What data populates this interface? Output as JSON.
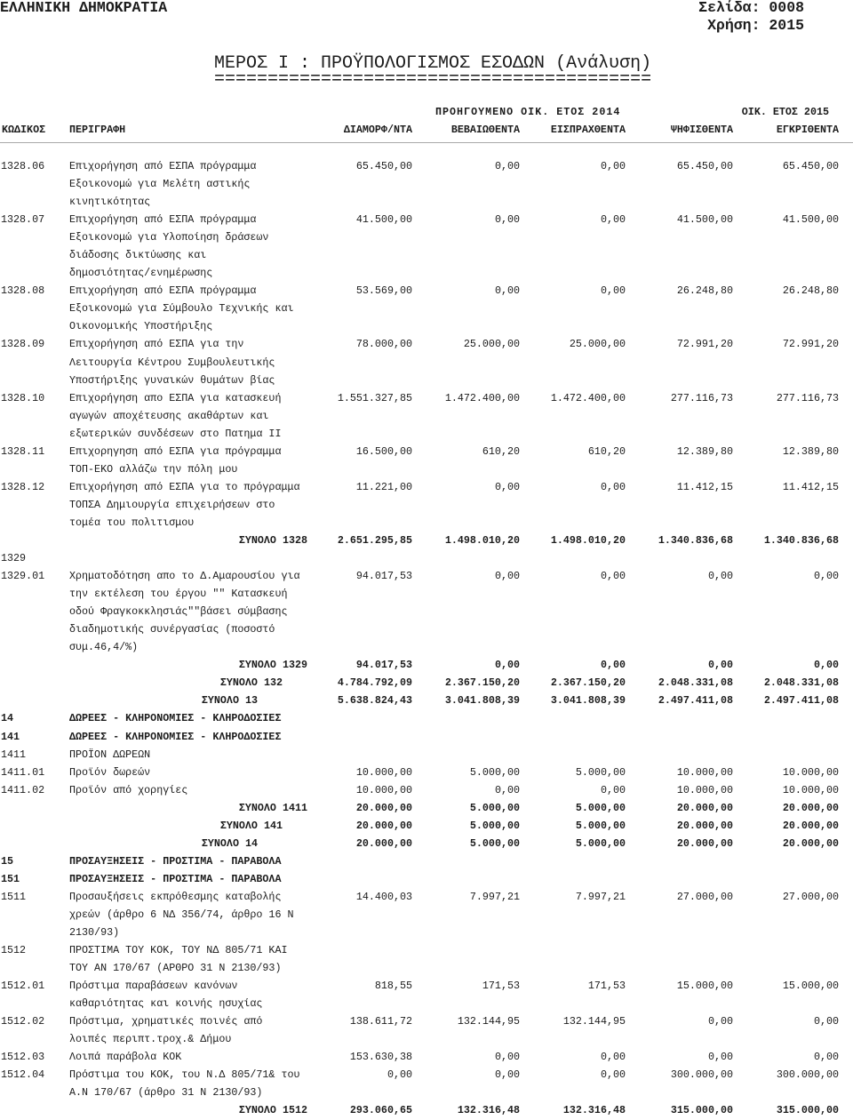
{
  "header": {
    "state": "ΕΛΛΗΝΙΚΗ ΔΗΜΟΚΡΑΤΙΑ",
    "page": "Σελίδα: 0008",
    "year": "Χρήση: 2015",
    "title": "ΜΕΡΟΣ Ι : ΠΡΟΫΠΟΛΟΓΙΣΜΟΣ ΕΣΟΔΩΝ (Ανάλυση)",
    "underline": "=========================================",
    "prev_year": "ΠΡΟΗΓΟΥΜΕΝΟ ΟΙΚ. ΕΤΟΣ 2014",
    "cur_year": "ΟΙΚ. ΕΤΟΣ 2015"
  },
  "columns": {
    "code": "ΚΩΔΙΚΟΣ",
    "desc": "ΠΕΡΙΓΡΑΦΗ",
    "formed": "ΔΙΑΜΟΡΦ/ΝΤΑ",
    "certified": "ΒΕΒΑΙΩΘΕΝΤΑ",
    "collected": "ΕΙΣΠΡΑΧΘΕΝΤΑ",
    "voted": "ΨΗΦΙΣΘΕΝΤΑ",
    "approved": "ΕΓΚΡΙΘΕΝΤΑ"
  },
  "rows": [
    {
      "code": "1328.06",
      "desc": [
        "Επιχορήγηση από ΕΣΠΑ πρόγραμμα",
        "Εξοικονομώ για Μελέτη αστικής",
        "κινητικότητας"
      ],
      "values": [
        "65.450,00",
        "0,00",
        "0,00",
        "65.450,00",
        "65.450,00"
      ]
    },
    {
      "code": "1328.07",
      "desc": [
        "Επιχορήγηση από ΕΣΠΑ πρόγραμμα",
        "Εξοικονομώ για Υλοποίηση δράσεων",
        "διάδοσης δικτύωσης και",
        "δημοσιότητας/ενημέρωσης"
      ],
      "values": [
        "41.500,00",
        "0,00",
        "0,00",
        "41.500,00",
        "41.500,00"
      ]
    },
    {
      "code": "1328.08",
      "desc": [
        "Επιχορήγηση από ΕΣΠΑ πρόγραμμα",
        "Εξοικονομώ για Σύμβουλο Τεχνικής και",
        "Οικονομικής Υποστήριξης"
      ],
      "values": [
        "53.569,00",
        "0,00",
        "0,00",
        "26.248,80",
        "26.248,80"
      ]
    },
    {
      "code": "1328.09",
      "desc": [
        "Επιχορήγηση από ΕΣΠΑ για την",
        "Λειτουργία Κέντρου Συμβουλευτικής",
        "Υποστήριξης γυναικών θυμάτων βίας"
      ],
      "values": [
        "78.000,00",
        "25.000,00",
        "25.000,00",
        "72.991,20",
        "72.991,20"
      ]
    },
    {
      "code": "1328.10",
      "desc": [
        "Επιχορήγηση απο ΕΣΠΑ για κατασκευή",
        "αγωγών αποχέτευσης ακαθάρτων και",
        "εξωτερικών συνδέσεων στο Πατημα ΙΙ"
      ],
      "values": [
        "1.551.327,85",
        "1.472.400,00",
        "1.472.400,00",
        "277.116,73",
        "277.116,73"
      ]
    },
    {
      "code": "1328.11",
      "desc": [
        "Επιχορηγηση από ΕΣΠΑ για πρόγραμμα",
        "ΤΟΠ-ΕΚΟ αλλάζω την πόλη μου"
      ],
      "values": [
        "16.500,00",
        "610,20",
        "610,20",
        "12.389,80",
        "12.389,80"
      ]
    },
    {
      "code": "1328.12",
      "desc": [
        "Επιχορήγηση από ΕΣΠΑ για το πρόγραμμα",
        "ΤΟΠΣΑ Δημιουργία επιχειρήσεων στο",
        "τομέα του πολιτισμου"
      ],
      "values": [
        "11.221,00",
        "0,00",
        "0,00",
        "11.412,15",
        "11.412,15"
      ]
    },
    {
      "total": "ΣΥΝΟΛΟ 1328",
      "values": [
        "2.651.295,85",
        "1.498.010,20",
        "1.498.010,20",
        "1.340.836,68",
        "1.340.836,68"
      ]
    },
    {
      "code": "1329",
      "desc": []
    },
    {
      "code": "1329.01",
      "desc": [
        "Χρηματοδότηση απο το Δ.Αμαρουσίου για",
        "την εκτέλεση του έργου \"\" Κατασκευή",
        "οδού Φραγκοκκλησιάς\"\"βάσει σύμβασης",
        "διαδημοτικής συνέργασίας (ποσοστό",
        "συμ.46,4/%)"
      ],
      "values": [
        "94.017,53",
        "0,00",
        "0,00",
        "0,00",
        "0,00"
      ]
    },
    {
      "total": "ΣΥΝΟΛΟ 1329",
      "values": [
        "94.017,53",
        "0,00",
        "0,00",
        "0,00",
        "0,00"
      ]
    },
    {
      "total": "ΣΥΝΟΛΟ 132",
      "values": [
        "4.784.792,09",
        "2.367.150,20",
        "2.367.150,20",
        "2.048.331,08",
        "2.048.331,08"
      ]
    },
    {
      "total": "ΣΥΝΟΛΟ 13",
      "values": [
        "5.638.824,43",
        "3.041.808,39",
        "3.041.808,39",
        "2.497.411,08",
        "2.497.411,08"
      ]
    },
    {
      "code": "14",
      "heading": true,
      "desc": [
        "ΔΩΡΕΕΣ - ΚΛΗΡΟΝΟΜΙΕΣ - ΚΛΗΡΟΔΟΣΙΕΣ"
      ]
    },
    {
      "code": "141",
      "heading": true,
      "desc": [
        "ΔΩΡΕΕΣ - ΚΛΗΡΟΝΟΜΙΕΣ - ΚΛΗΡΟΔΟΣΙΕΣ"
      ]
    },
    {
      "code": "1411",
      "desc": [
        "ΠΡΟΪΟΝ ΔΩΡΕΩΝ"
      ]
    },
    {
      "code": "1411.01",
      "desc": [
        "Προϊόν δωρεών"
      ],
      "values": [
        "10.000,00",
        "5.000,00",
        "5.000,00",
        "10.000,00",
        "10.000,00"
      ]
    },
    {
      "code": "1411.02",
      "desc": [
        "Προϊόν από χορηγίες"
      ],
      "values": [
        "10.000,00",
        "0,00",
        "0,00",
        "10.000,00",
        "10.000,00"
      ]
    },
    {
      "total": "ΣΥΝΟΛΟ 1411",
      "values": [
        "20.000,00",
        "5.000,00",
        "5.000,00",
        "20.000,00",
        "20.000,00"
      ]
    },
    {
      "total": "ΣΥΝΟΛΟ 141",
      "values": [
        "20.000,00",
        "5.000,00",
        "5.000,00",
        "20.000,00",
        "20.000,00"
      ]
    },
    {
      "total": "ΣΥΝΟΛΟ 14",
      "values": [
        "20.000,00",
        "5.000,00",
        "5.000,00",
        "20.000,00",
        "20.000,00"
      ]
    },
    {
      "code": "15",
      "heading": true,
      "desc": [
        "ΠΡΟΣΑΥΞΗΣΕΙΣ - ΠΡΟΣΤΙΜΑ - ΠΑΡΑΒΟΛΑ"
      ]
    },
    {
      "code": "151",
      "heading": true,
      "desc": [
        "ΠΡΟΣΑΥΞΗΣΕΙΣ - ΠΡΟΣΤΙΜΑ - ΠΑΡΑΒΟΛΑ"
      ]
    },
    {
      "code": "1511",
      "desc": [
        "Προσαυξήσεις εκπρόθεσμης καταβολής",
        "χρεών (άρθρο 6 ΝΔ 356/74, άρθρο 16 Ν",
        "2130/93)"
      ],
      "values": [
        "14.400,03",
        "7.997,21",
        "7.997,21",
        "27.000,00",
        "27.000,00"
      ]
    },
    {
      "code": "1512",
      "desc": [
        "ΠΡΟΣΤΙΜΑ ΤΟΥ ΚΟΚ, ΤΟΥ ΝΔ 805/71 ΚΑΙ",
        "ΤΟΥ ΑΝ 170/67 (ΑΡΘΡΟ 31 Ν 2130/93)"
      ]
    },
    {
      "code": "1512.01",
      "desc": [
        "Πρόστιμα παραβάσεων κανόνων",
        "καθαριότητας και κοινής ησυχίας"
      ],
      "values": [
        "818,55",
        "171,53",
        "171,53",
        "15.000,00",
        "15.000,00"
      ]
    },
    {
      "code": "1512.02",
      "desc": [
        "Πρόστιμα, χρηματικές ποινές από",
        "λοιπές περιπτ.τροχ.& Δήμου"
      ],
      "values": [
        "138.611,72",
        "132.144,95",
        "132.144,95",
        "0,00",
        "0,00"
      ]
    },
    {
      "code": "1512.03",
      "desc": [
        "Λοιπά παράβολα ΚΟΚ"
      ],
      "values": [
        "153.630,38",
        "0,00",
        "0,00",
        "0,00",
        "0,00"
      ]
    },
    {
      "code": "1512.04",
      "desc": [
        "Πρόστιμα του ΚΟΚ, του Ν.Δ 805/71& του",
        "Α.Ν 170/67 (άρθρο 31 Ν 2130/93)"
      ],
      "values": [
        "0,00",
        "0,00",
        "0,00",
        "300.000,00",
        "300.000,00"
      ]
    },
    {
      "total": "ΣΥΝΟΛΟ 1512",
      "values": [
        "293.060,65",
        "132.316,48",
        "132.316,48",
        "315.000,00",
        "315.000,00"
      ]
    }
  ]
}
